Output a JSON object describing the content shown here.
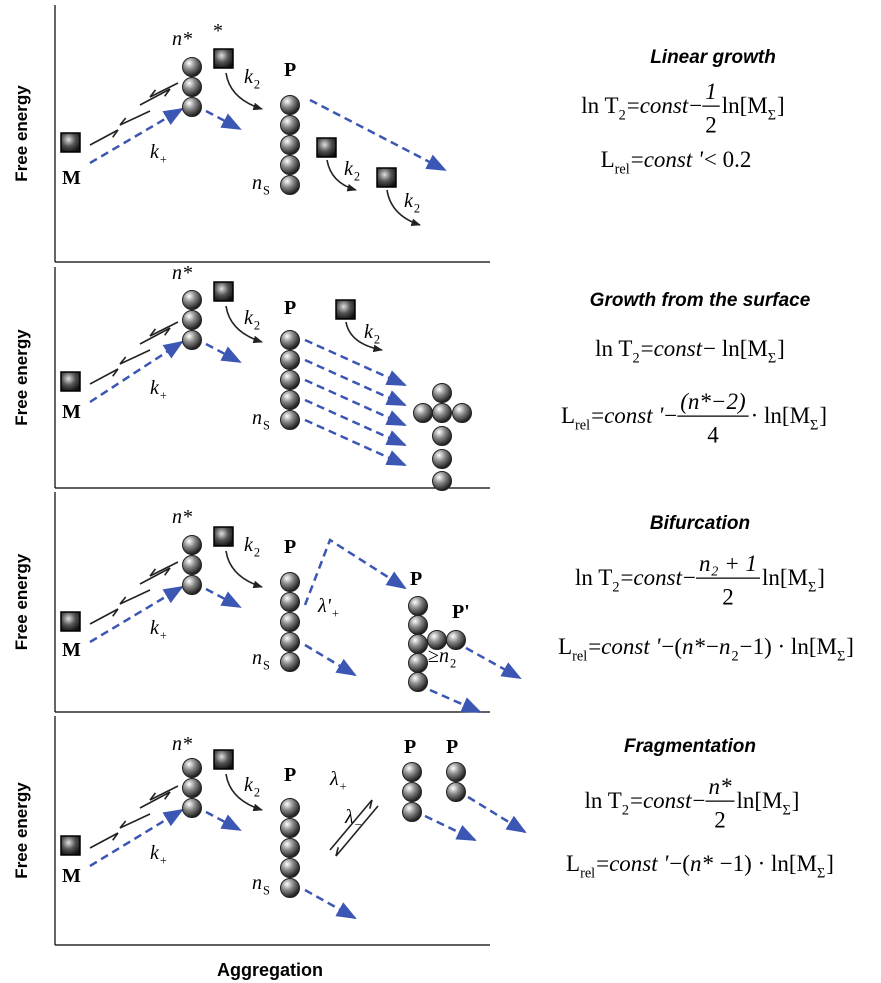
{
  "x_label": "Aggregation",
  "panels": [
    {
      "title": "Linear growth",
      "y_label": "Free energy",
      "labels": [
        [
          {
            "i": "n"
          },
          "*"
        ],
        [
          "*"
        ],
        [
          {
            "i": "k"
          },
          {
            "sub": "2"
          }
        ],
        [
          "P"
        ],
        [
          "M"
        ],
        [
          {
            "i": "k"
          },
          {
            "sub": "+"
          }
        ],
        [
          {
            "i": "n"
          },
          {
            "sub": "S"
          }
        ],
        [
          {
            "i": "k"
          },
          {
            "sub": "2"
          }
        ],
        [
          {
            "i": "k"
          },
          {
            "sub": "2"
          }
        ]
      ],
      "formulas": [
        [
          "ln T",
          {
            "sub": "2"
          },
          " = ",
          {
            "i": "const"
          },
          " − ",
          {
            "frac": [
              "1",
              "2"
            ]
          },
          " ln[M",
          {
            "sub": "Σ"
          },
          "]"
        ],
        [
          "L",
          {
            "sub": "rel"
          },
          " = ",
          {
            "i": "const '"
          },
          " < 0.2"
        ]
      ]
    },
    {
      "title": "Growth from the surface",
      "y_label": "Free energy",
      "labels": [
        [
          {
            "i": "n"
          },
          "*"
        ],
        [
          {
            "i": "k"
          },
          {
            "sub": "2"
          }
        ],
        [
          "P"
        ],
        [
          "M"
        ],
        [
          {
            "i": "k"
          },
          {
            "sub": "+"
          }
        ],
        [
          {
            "i": "n"
          },
          {
            "sub": "S"
          }
        ],
        [
          {
            "i": "k"
          },
          {
            "sub": "2"
          }
        ]
      ],
      "formulas": [
        [
          "ln T",
          {
            "sub": "2"
          },
          " = ",
          {
            "i": "const"
          },
          " − ln[M",
          {
            "sub": "Σ"
          },
          "]"
        ],
        [
          "L",
          {
            "sub": "rel"
          },
          " = ",
          {
            "i": "const '"
          },
          "−",
          {
            "frac": [
              "(n*−2)",
              "4"
            ]
          },
          " · ln[M",
          {
            "sub": "Σ"
          },
          "]"
        ]
      ]
    },
    {
      "title": "Bifurcation",
      "y_label": "Free energy",
      "labels": [
        [
          {
            "i": "n"
          },
          "*"
        ],
        [
          {
            "i": "k"
          },
          {
            "sub": "2"
          }
        ],
        [
          "P"
        ],
        [
          "M"
        ],
        [
          {
            "i": "k"
          },
          {
            "sub": "+"
          }
        ],
        [
          {
            "i": "n"
          },
          {
            "sub": "S"
          }
        ],
        [
          {
            "i": "λ'"
          },
          {
            "sub": "+"
          }
        ],
        [
          "P"
        ],
        [
          "P'"
        ],
        [
          "≥",
          {
            "i": "n"
          },
          {
            "sub": "2"
          }
        ]
      ],
      "formulas": [
        [
          "ln T",
          {
            "sub": "2"
          },
          " = ",
          {
            "i": "const"
          },
          " − ",
          {
            "frac": [
              "n₂ + 1",
              "2"
            ]
          },
          " ln[M",
          {
            "sub": "Σ"
          },
          "]"
        ],
        [
          "L",
          {
            "sub": "rel"
          },
          " = ",
          {
            "i": "const '"
          },
          "−(",
          {
            "i": "n"
          },
          "*−",
          {
            "i": "n"
          },
          {
            "sub": "2"
          },
          " −1) · ln[M",
          {
            "sub": "Σ"
          },
          "]"
        ]
      ]
    },
    {
      "title": "Fragmentation",
      "y_label": "Free energy",
      "labels": [
        [
          {
            "i": "n"
          },
          "*"
        ],
        [
          {
            "i": "k"
          },
          {
            "sub": "2"
          }
        ],
        [
          "P"
        ],
        [
          "M"
        ],
        [
          {
            "i": "k"
          },
          {
            "sub": "+"
          }
        ],
        [
          {
            "i": "n"
          },
          {
            "sub": "S"
          }
        ],
        [
          {
            "i": "λ"
          },
          {
            "sub": "+"
          }
        ],
        [
          {
            "i": "λ"
          },
          {
            "sub": "−"
          }
        ],
        [
          "P"
        ],
        [
          "P"
        ]
      ],
      "formulas": [
        [
          "ln T",
          {
            "sub": "2"
          },
          " = ",
          {
            "i": "const"
          },
          " − ",
          {
            "frac": [
              "n*",
              "2"
            ]
          },
          " ln[M",
          {
            "sub": "Σ"
          },
          "]"
        ],
        [
          "L",
          {
            "sub": "rel"
          },
          " = ",
          {
            "i": "const '"
          },
          "−(",
          {
            "i": "n"
          },
          "* −1) · ln[M",
          {
            "sub": "Σ"
          },
          "]"
        ]
      ]
    }
  ]
}
